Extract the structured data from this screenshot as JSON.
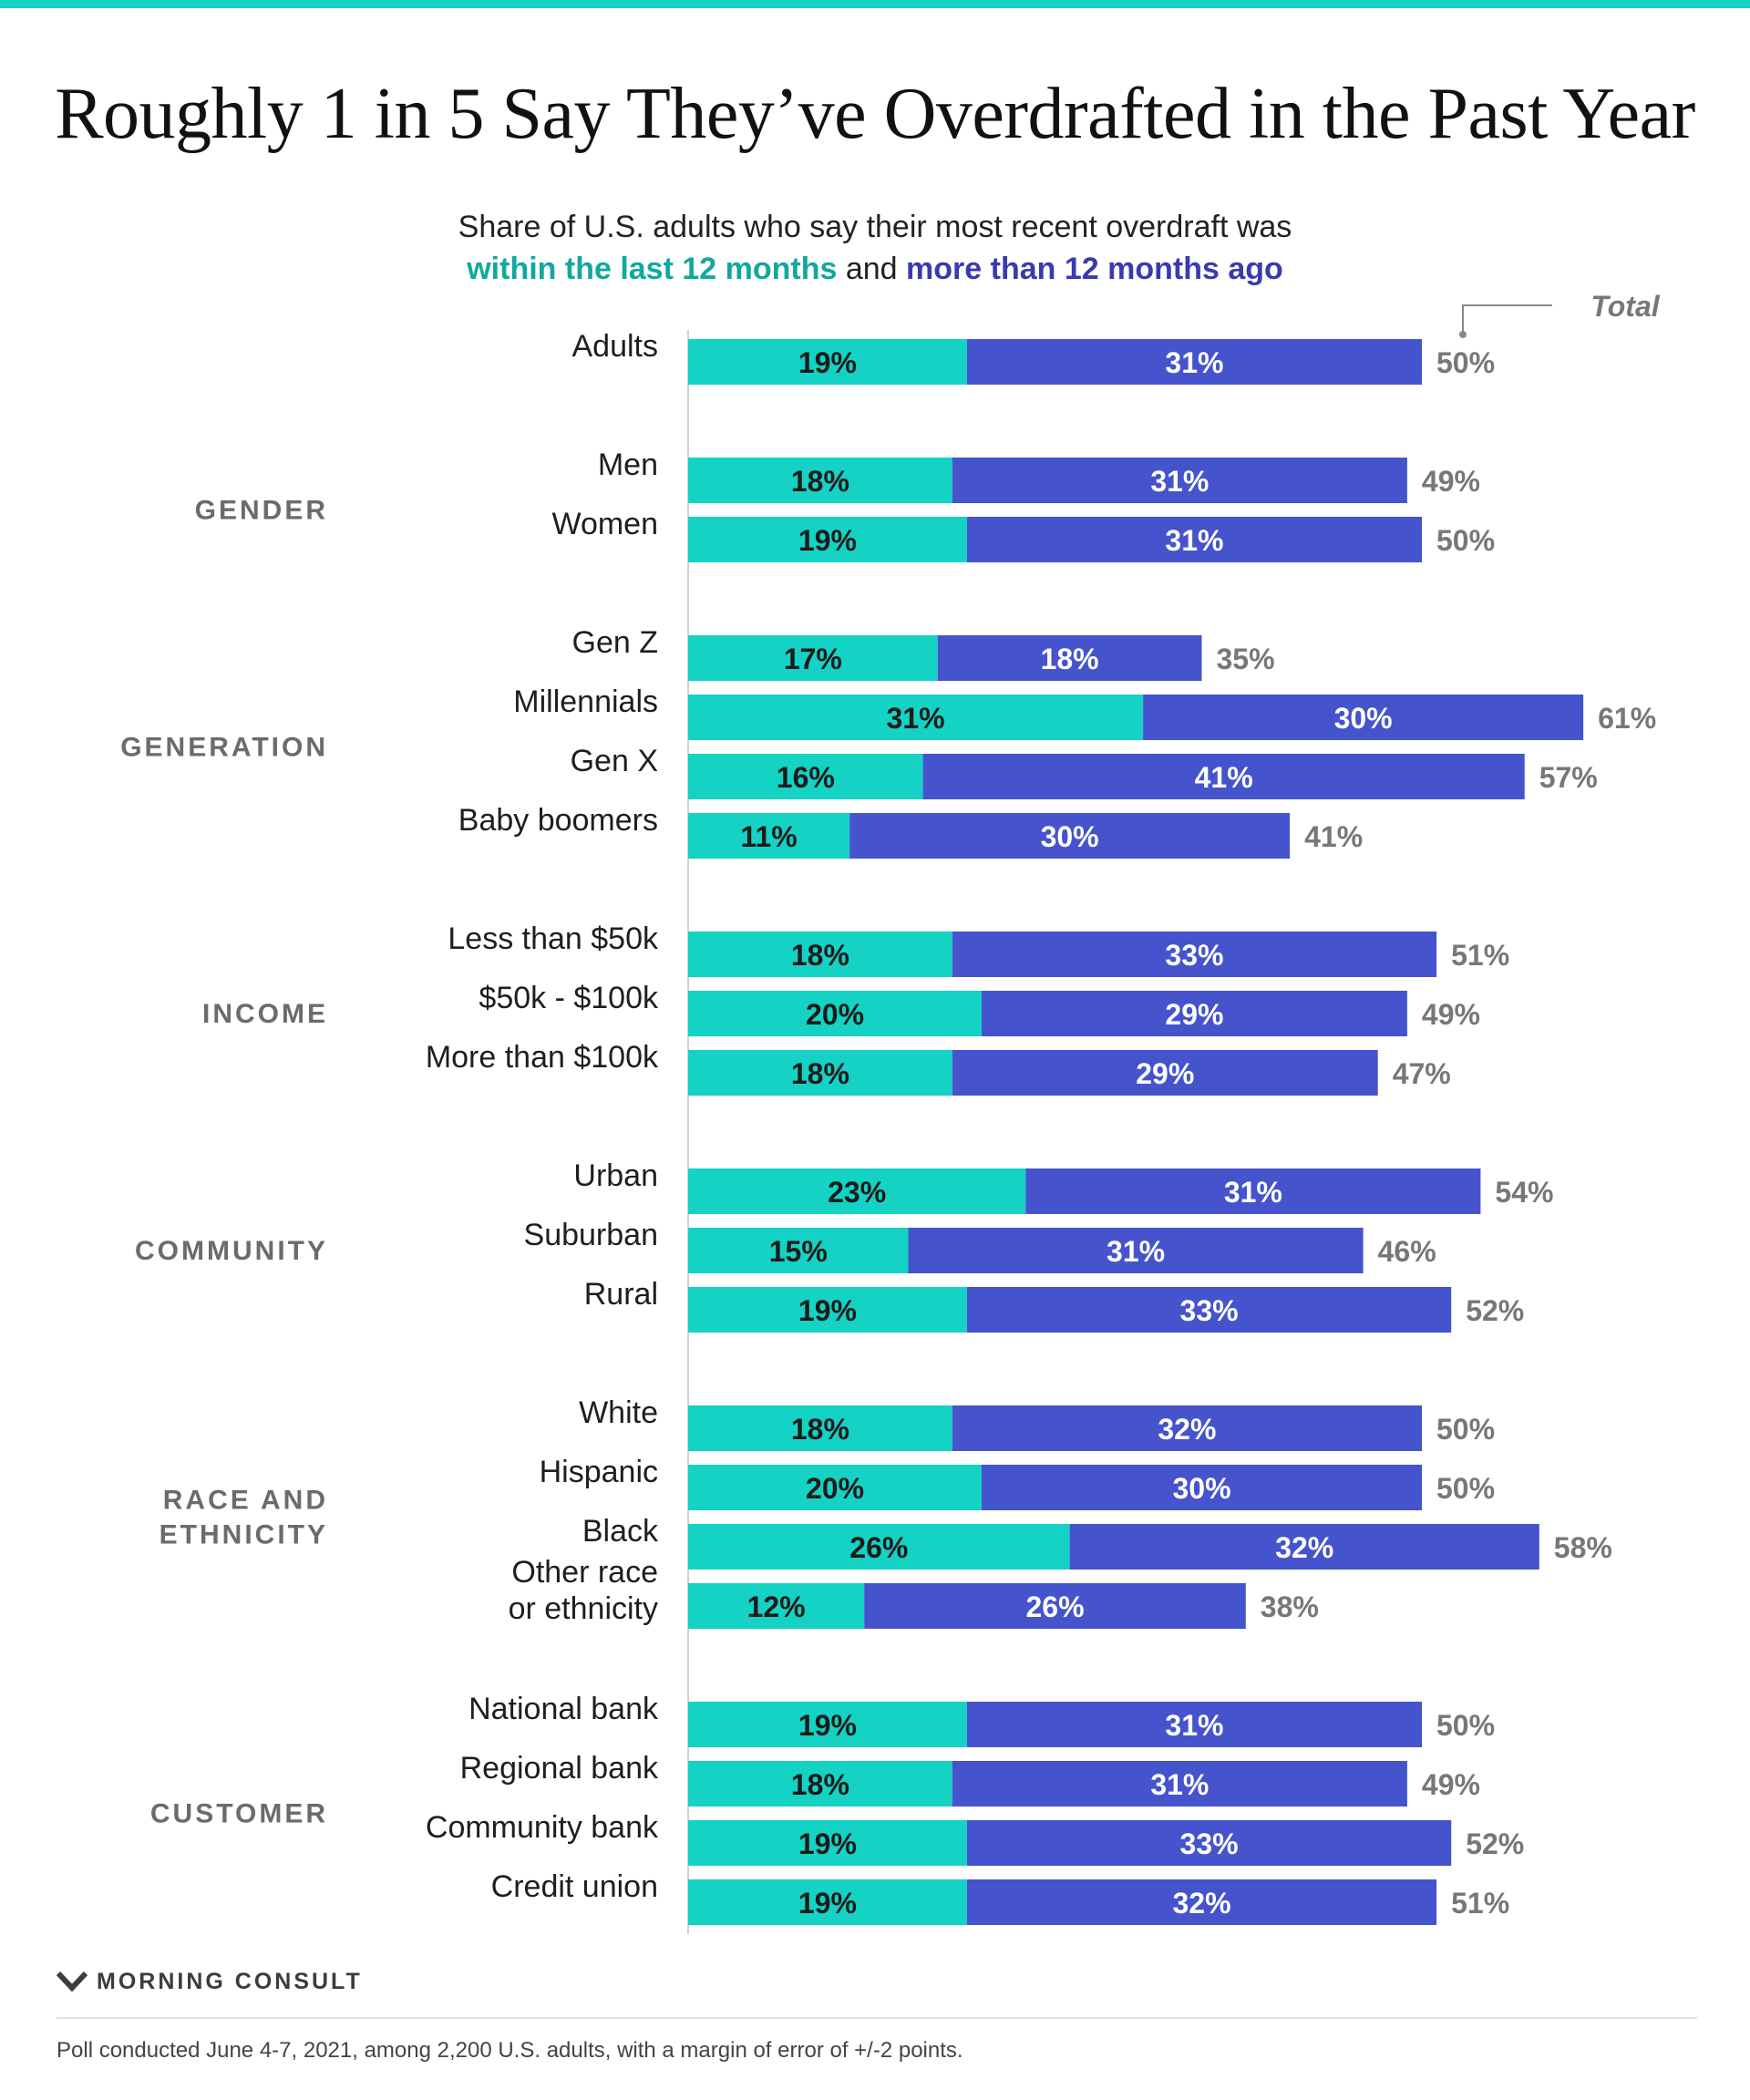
{
  "title": "Roughly 1 in 5 Say They’ve Overdrafted in the Past Year",
  "subtitle": {
    "line1": "Share of U.S. adults who say their most recent overdraft was",
    "part_recent": "within the last 12 months",
    "part_and": " and ",
    "part_older": "more than 12 months ago"
  },
  "colors": {
    "recent": "#14d2c4",
    "older": "#4553cd",
    "total_label": "#777777",
    "group_label": "#6b6b6b"
  },
  "chart_data": {
    "type": "bar",
    "orientation": "horizontal",
    "stacked": true,
    "total_label": "Total",
    "series": [
      {
        "name": "within the last 12 months"
      },
      {
        "name": "more than 12 months ago"
      }
    ],
    "groups": [
      {
        "label": "",
        "rows": [
          {
            "label": "Adults",
            "recent": 19,
            "older": 31,
            "total": 50
          }
        ]
      },
      {
        "label": "GENDER",
        "rows": [
          {
            "label": "Men",
            "recent": 18,
            "older": 31,
            "total": 49
          },
          {
            "label": "Women",
            "recent": 19,
            "older": 31,
            "total": 50
          }
        ]
      },
      {
        "label": "GENERATION",
        "rows": [
          {
            "label": "Gen Z",
            "recent": 17,
            "older": 18,
            "total": 35
          },
          {
            "label": "Millennials",
            "recent": 31,
            "older": 30,
            "total": 61
          },
          {
            "label": "Gen X",
            "recent": 16,
            "older": 41,
            "total": 57
          },
          {
            "label": "Baby boomers",
            "recent": 11,
            "older": 30,
            "total": 41
          }
        ]
      },
      {
        "label": "INCOME",
        "rows": [
          {
            "label": "Less than $50k",
            "recent": 18,
            "older": 33,
            "total": 51
          },
          {
            "label": "$50k - $100k",
            "recent": 20,
            "older": 29,
            "total": 49
          },
          {
            "label": "More than $100k",
            "recent": 18,
            "older": 29,
            "total": 47
          }
        ]
      },
      {
        "label": "COMMUNITY",
        "rows": [
          {
            "label": "Urban",
            "recent": 23,
            "older": 31,
            "total": 54
          },
          {
            "label": "Suburban",
            "recent": 15,
            "older": 31,
            "total": 46
          },
          {
            "label": "Rural",
            "recent": 19,
            "older": 33,
            "total": 52
          }
        ]
      },
      {
        "label": "RACE AND ETHNICITY",
        "label_lines": [
          "RACE AND",
          "ETHNICITY"
        ],
        "rows": [
          {
            "label": "White",
            "recent": 18,
            "older": 32,
            "total": 50
          },
          {
            "label": "Hispanic",
            "recent": 20,
            "older": 30,
            "total": 50
          },
          {
            "label": "Black",
            "recent": 26,
            "older": 32,
            "total": 58
          },
          {
            "label": "Other race or ethnicity",
            "label_lines": [
              "Other race",
              "or ethnicity"
            ],
            "recent": 12,
            "older": 26,
            "total": 38
          }
        ]
      },
      {
        "label": "CUSTOMER",
        "rows": [
          {
            "label": "National bank",
            "recent": 19,
            "older": 31,
            "total": 50
          },
          {
            "label": "Regional bank",
            "recent": 18,
            "older": 31,
            "total": 49
          },
          {
            "label": "Community bank",
            "recent": 19,
            "older": 33,
            "total": 52
          },
          {
            "label": "Credit union",
            "recent": 19,
            "older": 32,
            "total": 51
          }
        ]
      }
    ]
  },
  "brand": "MORNING CONSULT",
  "footnote": "Poll conducted June 4-7, 2021, among 2,200 U.S. adults, with a margin of error of +/-2 points."
}
